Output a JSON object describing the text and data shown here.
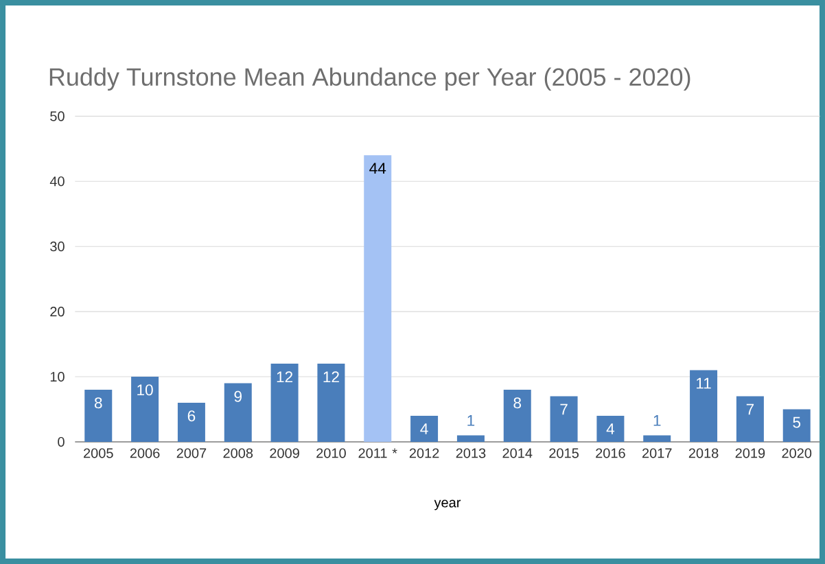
{
  "chart_data": {
    "type": "bar",
    "title": "Ruddy Turnstone Mean Abundance per Year (2005 - 2020)",
    "xlabel": "year",
    "categories": [
      "2005",
      "2006",
      "2007",
      "2008",
      "2009",
      "2010",
      "2011 *",
      "2012",
      "2013",
      "2014",
      "2015",
      "2016",
      "2017",
      "2018",
      "2019",
      "2020"
    ],
    "values": [
      8,
      10,
      6,
      9,
      12,
      12,
      44,
      4,
      1,
      8,
      7,
      4,
      1,
      11,
      7,
      5
    ],
    "colors": [
      "#4a7ebb",
      "#4a7ebb",
      "#4a7ebb",
      "#4a7ebb",
      "#4a7ebb",
      "#4a7ebb",
      "#a4c2f4",
      "#4a7ebb",
      "#4a7ebb",
      "#4a7ebb",
      "#4a7ebb",
      "#4a7ebb",
      "#4a7ebb",
      "#4a7ebb",
      "#4a7ebb",
      "#4a7ebb"
    ],
    "ylim": [
      0,
      50
    ],
    "yticks": [
      0,
      10,
      20,
      30,
      40,
      50
    ],
    "grid": "y",
    "data_labels": true
  }
}
